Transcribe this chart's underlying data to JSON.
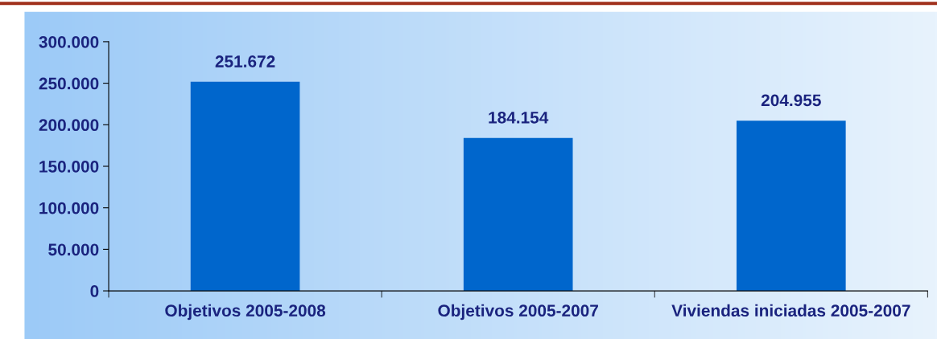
{
  "chart_data": {
    "type": "bar",
    "categories": [
      "Objetivos 2005-2008",
      "Objetivos 2005-2007",
      "Viviendas iniciadas 2005-2007"
    ],
    "values": [
      251672,
      184154,
      204955
    ],
    "value_labels": [
      "251.672",
      "184.154",
      "204.955"
    ],
    "color": "#0066cc",
    "ylim": [
      0,
      300000
    ],
    "yticks": [
      0,
      {
        "value": 50000,
        "label": "50.000"
      },
      {
        "value": 100000,
        "label": "100.000"
      },
      {
        "value": 150000,
        "label": "150.000"
      },
      {
        "value": 200000,
        "label": "200.000"
      },
      {
        "value": 250000,
        "label": "250.000"
      },
      {
        "value": 300000,
        "label": "300.000"
      }
    ],
    "grid": false
  }
}
